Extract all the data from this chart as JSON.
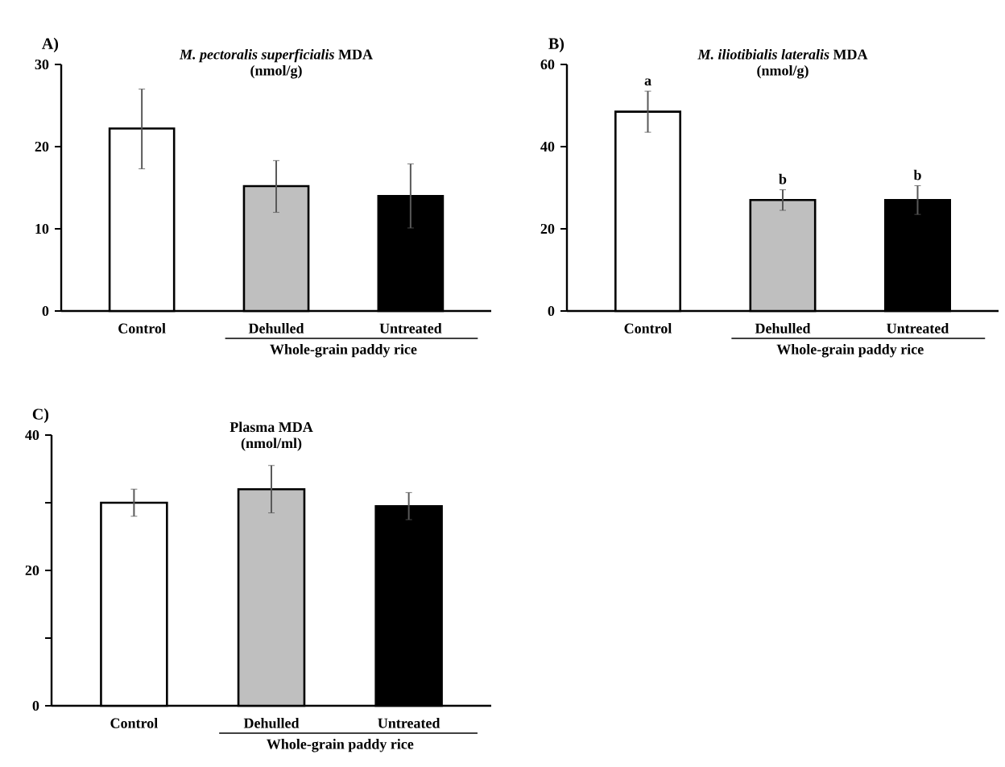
{
  "chart_data": [
    {
      "type": "bar",
      "title": "*M. pectoralis superficialis* MDA",
      "subtitle": "(nmol/g)",
      "categories": [
        "Control",
        "Dehulled",
        "Untreated"
      ],
      "values": [
        22.2,
        15.2,
        14.0
      ],
      "colors": [
        "#ffffff",
        "#bfbfbf",
        "#000000"
      ],
      "errors": [
        [
          17.3,
          27.0
        ],
        [
          12.0,
          18.3
        ],
        [
          10.1,
          17.9
        ]
      ],
      "ylim": [
        0,
        30
      ],
      "yticks": [
        0,
        10,
        20,
        30
      ],
      "annotations": [
        "A)",
        "Whole-grain paddy rice"
      ]
    },
    {
      "type": "bar",
      "title": "*M. iliotibialis lateralis* MDA",
      "subtitle": "(nmol/g)",
      "categories": [
        "Control",
        "Dehulled",
        "Untreated"
      ],
      "values": [
        48.5,
        27.0,
        27.0
      ],
      "colors": [
        "#ffffff",
        "#bfbfbf",
        "#000000"
      ],
      "errors": [
        [
          43.5,
          53.5
        ],
        [
          24.5,
          29.5
        ],
        [
          23.5,
          30.5
        ]
      ],
      "ylim": [
        0,
        60
      ],
      "yticks": [
        0,
        20,
        40,
        60
      ],
      "annotations": [
        "B)",
        "Whole-grain paddy rice",
        {
          "text": "a",
          "x": "Control",
          "y": 53.5
        },
        {
          "text": "b",
          "x": "Dehulled",
          "y": 29.5
        },
        {
          "text": "b",
          "x": "Untreated",
          "y": 30.5
        }
      ]
    },
    {
      "type": "bar",
      "title": "Plasma MDA",
      "subtitle": "(nmol/ml)",
      "categories": [
        "Control",
        "Dehulled",
        "Untreated"
      ],
      "values": [
        30.0,
        32.0,
        29.5
      ],
      "colors": [
        "#ffffff",
        "#bfbfbf",
        "#000000"
      ],
      "errors": [
        [
          28.0,
          32.0
        ],
        [
          28.5,
          35.5
        ],
        [
          27.5,
          31.5
        ]
      ],
      "ylim": [
        0,
        40
      ],
      "yticks": [
        0,
        {
          "value": 10,
          "label": null
        },
        20,
        {
          "value": 30,
          "label": null
        },
        40
      ],
      "annotations": [
        "C)",
        "Whole-grain paddy rice"
      ]
    }
  ]
}
